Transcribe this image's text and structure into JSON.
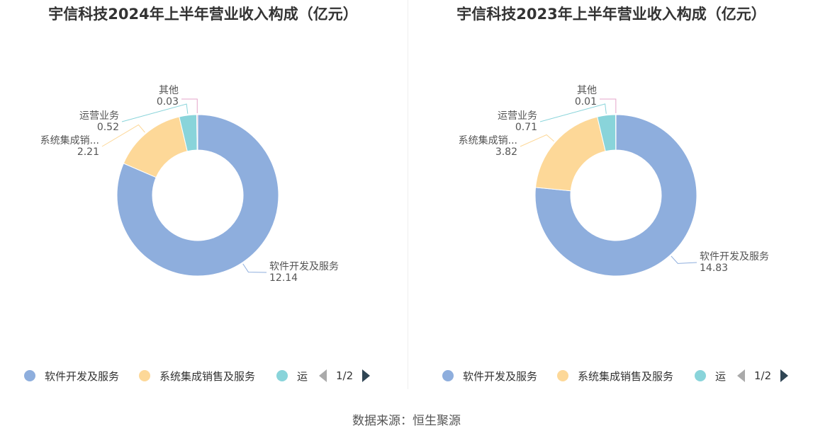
{
  "chart_data": [
    {
      "type": "pie",
      "title": "宇信科技2024年上半年营业收入构成（亿元）",
      "slices": [
        {
          "label": "软件开发及服务",
          "short_label": "软件开发及服务",
          "value": 12.14,
          "color": "#8eaedd"
        },
        {
          "label": "系统集成销售及服务",
          "short_label": "系统集成销...",
          "value": 2.21,
          "color": "#fdd898"
        },
        {
          "label": "运营业务",
          "short_label": "运营业务",
          "value": 0.52,
          "color": "#89d4da"
        },
        {
          "label": "其他",
          "short_label": "其他",
          "value": 0.03,
          "color": "#e5a5c9"
        }
      ],
      "value_labels": [
        "12.14",
        "2.21",
        "0.52",
        "0.03"
      ],
      "legend": {
        "items": [
          "软件开发及服务",
          "系统集成销售及服务",
          "运"
        ],
        "page": "1/2",
        "placement": "bottom"
      }
    },
    {
      "type": "pie",
      "title": "宇信科技2023年上半年营业收入构成（亿元）",
      "slices": [
        {
          "label": "软件开发及服务",
          "short_label": "软件开发及服务",
          "value": 14.83,
          "color": "#8eaedd"
        },
        {
          "label": "系统集成销售及服务",
          "short_label": "系统集成销...",
          "value": 3.82,
          "color": "#fdd898"
        },
        {
          "label": "运营业务",
          "short_label": "运营业务",
          "value": 0.71,
          "color": "#89d4da"
        },
        {
          "label": "其他",
          "short_label": "其他",
          "value": 0.01,
          "color": "#e5a5c9"
        }
      ],
      "value_labels": [
        "14.83",
        "3.82",
        "0.71",
        "0.01"
      ],
      "legend": {
        "items": [
          "软件开发及服务",
          "系统集成销售及服务",
          "运"
        ],
        "page": "1/2",
        "placement": "bottom"
      }
    }
  ],
  "source": "数据来源：恒生聚源"
}
